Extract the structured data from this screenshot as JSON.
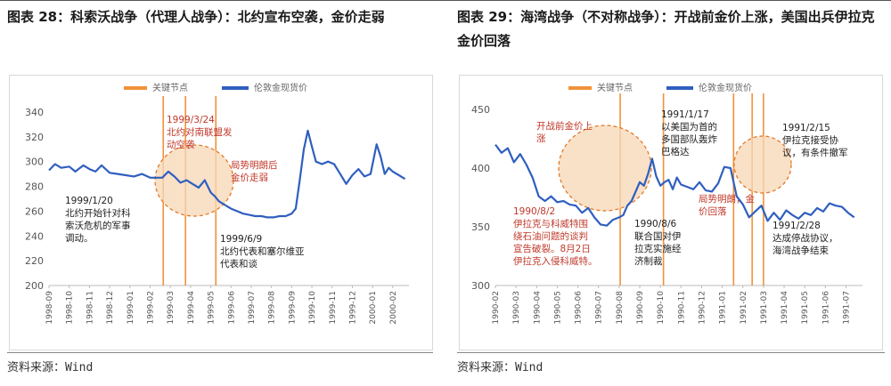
{
  "source_label": "资料来源：Wind",
  "colors": {
    "line": "#2f5fbf",
    "key": "#f0923a",
    "annot_red": "#c0392b",
    "circle_fill": "#f7d7b5",
    "circle_stroke": "#e07b2b",
    "grid": "#e6e6e6",
    "axis_text": "#555555"
  },
  "chart_data": [
    {
      "type": "line",
      "title": "图表 28：科索沃战争（代理人战争）：北约宣布空袭，金价走弱",
      "legend": {
        "key_label": "关键节点",
        "series_label": "伦敦金现货价"
      },
      "ylim": [
        200,
        340
      ],
      "yticks": [
        200,
        220,
        240,
        260,
        280,
        300,
        320,
        340
      ],
      "x_tick_labels": [
        "1998-09",
        "1998-10",
        "1998-11",
        "1998-12",
        "1999-01",
        "1999-02",
        "1999-03",
        "1999-04",
        "1999-05",
        "1999-06",
        "1999-07",
        "1999-08",
        "1999-09",
        "1999-10",
        "1999-11",
        "1999-12",
        "2000-01",
        "2000-02"
      ],
      "x_range": [
        0,
        17.8
      ],
      "key_dates_x": [
        5.65,
        6.75,
        8.25
      ],
      "series": [
        {
          "name": "伦敦金现货价",
          "x": [
            0,
            0.3,
            0.6,
            1.0,
            1.3,
            1.7,
            2.0,
            2.3,
            2.6,
            3.0,
            3.4,
            3.8,
            4.2,
            4.6,
            5.0,
            5.3,
            5.6,
            5.9,
            6.2,
            6.5,
            6.8,
            7.1,
            7.4,
            7.7,
            8.0,
            8.2,
            8.4,
            8.7,
            9.0,
            9.3,
            9.6,
            9.9,
            10.2,
            10.5,
            10.8,
            11.1,
            11.4,
            11.7,
            12.0,
            12.2,
            12.4,
            12.6,
            12.8,
            13.0,
            13.2,
            13.5,
            13.8,
            14.1,
            14.4,
            14.7,
            15.0,
            15.3,
            15.6,
            15.9,
            16.2,
            16.4,
            16.6,
            16.8,
            17.0,
            17.3,
            17.6
          ],
          "y": [
            293,
            298,
            295,
            296,
            292,
            297,
            294,
            292,
            297,
            291,
            290,
            289,
            288,
            290,
            287,
            287,
            287,
            292,
            288,
            283,
            285,
            282,
            279,
            285,
            275,
            272,
            268,
            265,
            262,
            260,
            258,
            257,
            256,
            256,
            255,
            255,
            256,
            256,
            258,
            262,
            285,
            310,
            325,
            312,
            300,
            298,
            300,
            298,
            290,
            282,
            289,
            294,
            288,
            290,
            314,
            304,
            290,
            295,
            292,
            289,
            286
          ]
        }
      ],
      "annotations": [
        {
          "text": "1999/1/20\n北约开始针对科\n索沃危机的军事\n调动。",
          "color": "dark"
        },
        {
          "text": "1999/3/24\n北约对南联盟发\n动空袭",
          "color": "red"
        },
        {
          "text": "局势明朗后\n金价走弱",
          "color": "red"
        },
        {
          "text": "1999/6/9\n北约代表和塞尔维亚\n代表和谈",
          "color": "dark"
        }
      ]
    },
    {
      "type": "line",
      "title": "图表 29：海湾战争（不对称战争）：开战前金价上涨，美国出兵伊拉克金价回落",
      "legend": {
        "key_label": "关键节点",
        "series_label": "伦敦金现货价"
      },
      "ylim": [
        300,
        450
      ],
      "yticks": [
        300,
        350,
        400,
        450
      ],
      "x_tick_labels": [
        "1990-02",
        "1990-03",
        "1990-04",
        "1990-05",
        "1990-06",
        "1990-07",
        "1990-08",
        "1990-09",
        "1990-10",
        "1990-11",
        "1990-12",
        "1991-01",
        "1991-02",
        "1991-03",
        "1991-04",
        "1991-05",
        "1991-06",
        "1991-07"
      ],
      "x_range": [
        0,
        17.8
      ],
      "key_dates_x": [
        6.05,
        8.15,
        11.55,
        12.45,
        13.0
      ],
      "series": [
        {
          "name": "伦敦金现货价",
          "x": [
            0,
            0.3,
            0.6,
            0.9,
            1.2,
            1.5,
            1.8,
            2.1,
            2.4,
            2.7,
            3.0,
            3.3,
            3.6,
            3.9,
            4.2,
            4.5,
            4.8,
            5.1,
            5.4,
            5.7,
            6.0,
            6.2,
            6.4,
            6.6,
            6.8,
            7.0,
            7.2,
            7.4,
            7.6,
            7.8,
            8.0,
            8.2,
            8.4,
            8.6,
            8.8,
            9.0,
            9.3,
            9.6,
            9.9,
            10.2,
            10.5,
            10.8,
            11.1,
            11.4,
            11.7,
            12.0,
            12.3,
            12.6,
            12.9,
            13.2,
            13.5,
            13.8,
            14.1,
            14.4,
            14.7,
            15.0,
            15.3,
            15.6,
            15.9,
            16.2,
            16.5,
            16.8,
            17.1,
            17.4
          ],
          "y": [
            420,
            413,
            417,
            405,
            412,
            403,
            392,
            376,
            372,
            376,
            371,
            372,
            369,
            368,
            362,
            366,
            358,
            352,
            351,
            356,
            358,
            360,
            368,
            372,
            380,
            388,
            385,
            395,
            408,
            393,
            385,
            388,
            390,
            382,
            392,
            386,
            384,
            382,
            388,
            381,
            380,
            387,
            401,
            400,
            376,
            369,
            358,
            363,
            368,
            355,
            362,
            356,
            364,
            360,
            357,
            362,
            360,
            366,
            363,
            370,
            368,
            367,
            362,
            358
          ]
        }
      ],
      "annotations": [
        {
          "text": "开战前金价上\n涨",
          "color": "red"
        },
        {
          "text": "1991/1/17\n以美国为首的\n多国部队轰炸\n巴格达",
          "color": "dark"
        },
        {
          "text": "1991/2/15\n伊拉克接受协\n议，有条件撤军",
          "color": "dark"
        },
        {
          "text": "局势明朗，金\n价回落",
          "color": "red"
        },
        {
          "text": "1990/8/2\n伊拉克与科威特围\n绕石油问题的谈判\n宣告破裂。8月2日\n伊拉克入侵科威特。",
          "color": "red"
        },
        {
          "text": "1990/8/6\n联合国对伊\n拉克实施经\n济制裁",
          "color": "dark"
        },
        {
          "text": "1991/2/28\n达成停战协议，\n海湾战争结束",
          "color": "dark"
        }
      ]
    }
  ]
}
